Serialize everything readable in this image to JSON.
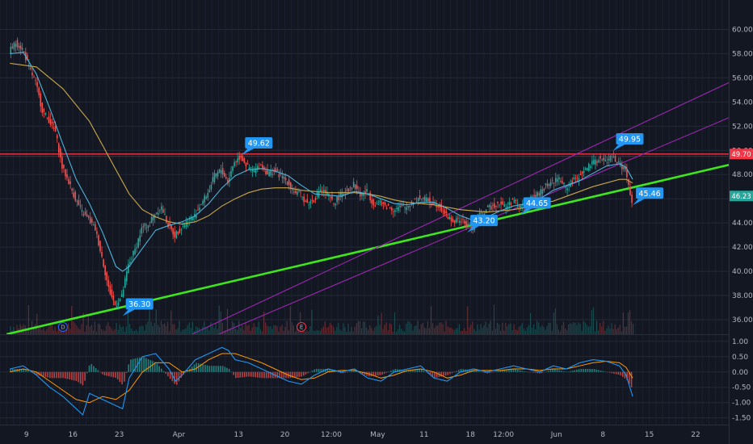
{
  "chart_data": [
    {
      "type": "candlestick-line",
      "price_axis": {
        "ticks": [
          "60.00",
          "58.00",
          "56.00",
          "54.00",
          "52.00",
          "50.00",
          "48.00",
          "46.00",
          "44.00",
          "42.00",
          "40.00",
          "38.00",
          "36.00"
        ],
        "range": [
          34.8,
          61.5
        ]
      },
      "time_axis": {
        "labels": [
          {
            "t": 2.5,
            "label": "9"
          },
          {
            "t": 9.5,
            "label": "16"
          },
          {
            "t": 16.5,
            "label": "23"
          },
          {
            "t": 25.5,
            "label": "Apr"
          },
          {
            "t": 34.5,
            "label": "13"
          },
          {
            "t": 41.5,
            "label": "20"
          },
          {
            "t": 48.5,
            "label": "12:00"
          },
          {
            "t": 55.5,
            "label": "May"
          },
          {
            "t": 62.5,
            "label": "11"
          },
          {
            "t": 69.5,
            "label": "18"
          },
          {
            "t": 74.5,
            "label": "12:00"
          },
          {
            "t": 82.5,
            "label": "Jun"
          },
          {
            "t": 89.5,
            "label": "8"
          },
          {
            "t": 96.5,
            "label": "15"
          },
          {
            "t": 103.5,
            "label": "22"
          }
        ],
        "range": [
          -1.5,
          108.5
        ]
      },
      "price_series": [
        [
          0,
          58.2
        ],
        [
          1,
          58.9
        ],
        [
          2,
          58.4
        ],
        [
          3,
          56.9
        ],
        [
          4,
          55.6
        ],
        [
          5,
          53.3
        ],
        [
          6,
          52.5
        ],
        [
          7,
          51.5
        ],
        [
          8,
          48.6
        ],
        [
          9,
          47.4
        ],
        [
          10,
          46.0
        ],
        [
          11,
          44.9
        ],
        [
          12,
          44.3
        ],
        [
          13,
          43.5
        ],
        [
          14,
          41.2
        ],
        [
          15,
          38.6
        ],
        [
          16,
          37.2
        ],
        [
          17,
          37.9
        ],
        [
          18,
          40.5
        ],
        [
          19,
          41.8
        ],
        [
          20,
          43.5
        ],
        [
          21,
          43.9
        ],
        [
          22,
          44.8
        ],
        [
          23,
          45.3
        ],
        [
          24,
          43.8
        ],
        [
          25,
          43.0
        ],
        [
          26,
          43.6
        ],
        [
          27,
          44.2
        ],
        [
          28,
          44.6
        ],
        [
          29,
          45.6
        ],
        [
          30,
          46.5
        ],
        [
          31,
          47.9
        ],
        [
          32,
          48.4
        ],
        [
          33,
          47.4
        ],
        [
          34,
          49.1
        ],
        [
          35,
          49.5
        ],
        [
          36,
          48.6
        ],
        [
          37,
          48.3
        ],
        [
          38,
          48.8
        ],
        [
          39,
          48.1
        ],
        [
          40,
          48.3
        ],
        [
          41,
          47.9
        ],
        [
          42,
          47.4
        ],
        [
          43,
          46.6
        ],
        [
          44,
          46.3
        ],
        [
          45,
          45.6
        ],
        [
          46,
          45.9
        ],
        [
          47,
          46.8
        ],
        [
          48,
          46.4
        ],
        [
          49,
          45.6
        ],
        [
          50,
          46.3
        ],
        [
          51,
          46.7
        ],
        [
          52,
          47.2
        ],
        [
          53,
          46.3
        ],
        [
          54,
          46.6
        ],
        [
          55,
          45.6
        ],
        [
          56,
          45.6
        ],
        [
          57,
          45.4
        ],
        [
          58,
          45.1
        ],
        [
          59,
          45.3
        ],
        [
          60,
          45.3
        ],
        [
          61,
          45.8
        ],
        [
          62,
          46.1
        ],
        [
          63,
          45.9
        ],
        [
          64,
          45.7
        ],
        [
          65,
          45.4
        ],
        [
          66,
          44.6
        ],
        [
          67,
          44.1
        ],
        [
          68,
          44.3
        ],
        [
          69,
          43.8
        ],
        [
          70,
          43.6
        ],
        [
          71,
          44.6
        ],
        [
          72,
          45.1
        ],
        [
          73,
          45.4
        ],
        [
          74,
          45.7
        ],
        [
          75,
          45.3
        ],
        [
          76,
          45.9
        ],
        [
          77,
          45.4
        ],
        [
          78,
          45.5
        ],
        [
          79,
          46.1
        ],
        [
          80,
          46.4
        ],
        [
          81,
          47.1
        ],
        [
          82,
          47.4
        ],
        [
          83,
          47.7
        ],
        [
          84,
          46.9
        ],
        [
          85,
          47.4
        ],
        [
          86,
          47.9
        ],
        [
          87,
          48.4
        ],
        [
          88,
          48.9
        ],
        [
          89,
          49.3
        ],
        [
          90,
          49.1
        ],
        [
          91,
          49.5
        ],
        [
          92,
          48.9
        ],
        [
          93,
          48.4
        ],
        [
          94,
          45.6
        ]
      ],
      "ema_fast": [
        [
          0,
          58.0
        ],
        [
          2,
          58.1
        ],
        [
          4,
          56.3
        ],
        [
          6,
          53.5
        ],
        [
          8,
          50.5
        ],
        [
          10,
          47.6
        ],
        [
          12,
          45.6
        ],
        [
          14,
          43.2
        ],
        [
          16,
          40.4
        ],
        [
          17,
          40.0
        ],
        [
          18,
          40.4
        ],
        [
          20,
          41.9
        ],
        [
          22,
          43.4
        ],
        [
          24,
          43.8
        ],
        [
          26,
          44.1
        ],
        [
          28,
          44.6
        ],
        [
          30,
          45.6
        ],
        [
          32,
          46.9
        ],
        [
          34,
          47.9
        ],
        [
          36,
          48.4
        ],
        [
          38,
          48.5
        ],
        [
          40,
          48.3
        ],
        [
          42,
          47.9
        ],
        [
          44,
          47.1
        ],
        [
          46,
          46.4
        ],
        [
          48,
          46.3
        ],
        [
          50,
          46.2
        ],
        [
          52,
          46.6
        ],
        [
          54,
          46.4
        ],
        [
          56,
          46.0
        ],
        [
          58,
          45.6
        ],
        [
          60,
          45.5
        ],
        [
          62,
          45.7
        ],
        [
          64,
          45.7
        ],
        [
          66,
          45.2
        ],
        [
          68,
          44.6
        ],
        [
          70,
          44.2
        ],
        [
          72,
          44.5
        ],
        [
          74,
          45.0
        ],
        [
          76,
          45.4
        ],
        [
          78,
          45.6
        ],
        [
          80,
          46.0
        ],
        [
          82,
          46.7
        ],
        [
          84,
          47.1
        ],
        [
          86,
          47.5
        ],
        [
          88,
          48.1
        ],
        [
          90,
          48.7
        ],
        [
          92,
          48.9
        ],
        [
          93,
          48.6
        ],
        [
          94,
          47.6
        ]
      ],
      "ema_slow": [
        [
          0,
          57.2
        ],
        [
          4,
          56.9
        ],
        [
          8,
          55.1
        ],
        [
          12,
          52.4
        ],
        [
          16,
          48.4
        ],
        [
          18,
          46.4
        ],
        [
          20,
          45.1
        ],
        [
          22,
          44.5
        ],
        [
          24,
          44.1
        ],
        [
          26,
          43.9
        ],
        [
          28,
          44.1
        ],
        [
          30,
          44.6
        ],
        [
          32,
          45.4
        ],
        [
          34,
          46.0
        ],
        [
          36,
          46.5
        ],
        [
          38,
          46.8
        ],
        [
          40,
          46.9
        ],
        [
          42,
          46.9
        ],
        [
          44,
          46.7
        ],
        [
          46,
          46.6
        ],
        [
          48,
          46.5
        ],
        [
          50,
          46.5
        ],
        [
          52,
          46.5
        ],
        [
          54,
          46.4
        ],
        [
          56,
          46.2
        ],
        [
          58,
          45.9
        ],
        [
          60,
          45.7
        ],
        [
          62,
          45.6
        ],
        [
          64,
          45.5
        ],
        [
          66,
          45.3
        ],
        [
          68,
          45.1
        ],
        [
          70,
          45.0
        ],
        [
          72,
          44.9
        ],
        [
          74,
          45.0
        ],
        [
          76,
          45.1
        ],
        [
          78,
          45.3
        ],
        [
          80,
          45.6
        ],
        [
          82,
          45.8
        ],
        [
          84,
          46.2
        ],
        [
          86,
          46.6
        ],
        [
          88,
          47.0
        ],
        [
          90,
          47.3
        ],
        [
          92,
          47.6
        ],
        [
          93,
          47.6
        ],
        [
          94,
          47.3
        ]
      ],
      "horizontal_lines": [
        {
          "price": 49.7,
          "color": "#f23645"
        }
      ],
      "trend_lines": [
        {
          "from": [
            -0.5,
            34.8
          ],
          "to": [
            108.5,
            48.8
          ],
          "color": "#3de61d"
        },
        {
          "from": [
            27.5,
            34.8
          ],
          "to": [
            108.5,
            55.6
          ],
          "color": "#9c27b0"
        },
        {
          "from": [
            31.5,
            34.8
          ],
          "to": [
            108.5,
            52.7
          ],
          "color": "#9c27b0"
        }
      ],
      "callouts": [
        {
          "t": 17,
          "price": 36.3,
          "label": "36.30"
        },
        {
          "t": 35,
          "price": 49.62,
          "label": "49.62"
        },
        {
          "t": 69,
          "price": 43.2,
          "label": "43.20"
        },
        {
          "t": 77,
          "price": 44.65,
          "label": "44.65"
        },
        {
          "t": 91,
          "price": 49.95,
          "label": "49.95"
        },
        {
          "t": 94,
          "price": 45.46,
          "label": "45.46"
        }
      ],
      "price_tags": [
        {
          "label": "49.70",
          "price": 49.7,
          "color": "#f23645"
        },
        {
          "label": "46.23",
          "price": 46.23,
          "color": "#26a69a"
        }
      ],
      "events": [
        {
          "t": 8,
          "label": "D",
          "color": "#2962ff"
        },
        {
          "t": 44,
          "label": "E",
          "color": "#f23645"
        }
      ],
      "colors": {
        "background": "#131722",
        "up": "#26a69a",
        "down": "#ef5350",
        "ema_fast": "#4fb3d9",
        "ema_slow": "#c8a64a",
        "callout": "#2196f3"
      }
    },
    {
      "type": "oscillator",
      "y_axis": {
        "ticks": [
          "1.00",
          "0.50",
          "0.00",
          "-0.50",
          "-1.00",
          "-1.50"
        ],
        "range": [
          -1.72,
          1.18
        ]
      },
      "line_1": [
        [
          0,
          0.1
        ],
        [
          2,
          0.2
        ],
        [
          4,
          -0.1
        ],
        [
          6,
          -0.5
        ],
        [
          8,
          -0.8
        ],
        [
          10,
          -1.2
        ],
        [
          11,
          -1.4
        ],
        [
          12,
          -0.7
        ],
        [
          14,
          -0.9
        ],
        [
          16,
          -1.1
        ],
        [
          17,
          -1.2
        ],
        [
          18,
          -0.2
        ],
        [
          20,
          0.5
        ],
        [
          22,
          0.6
        ],
        [
          24,
          0.1
        ],
        [
          25,
          -0.3
        ],
        [
          26,
          -0.1
        ],
        [
          28,
          0.4
        ],
        [
          30,
          0.6
        ],
        [
          32,
          0.8
        ],
        [
          33,
          0.7
        ],
        [
          34,
          0.4
        ],
        [
          36,
          0.3
        ],
        [
          38,
          0.1
        ],
        [
          40,
          -0.1
        ],
        [
          42,
          -0.3
        ],
        [
          44,
          -0.4
        ],
        [
          46,
          -0.1
        ],
        [
          48,
          0.1
        ],
        [
          50,
          0.0
        ],
        [
          52,
          0.1
        ],
        [
          54,
          -0.2
        ],
        [
          56,
          -0.3
        ],
        [
          58,
          0.0
        ],
        [
          60,
          0.1
        ],
        [
          62,
          0.2
        ],
        [
          64,
          -0.2
        ],
        [
          66,
          -0.3
        ],
        [
          68,
          0.0
        ],
        [
          70,
          0.1
        ],
        [
          72,
          0.0
        ],
        [
          74,
          0.1
        ],
        [
          76,
          0.2
        ],
        [
          78,
          0.1
        ],
        [
          80,
          0.0
        ],
        [
          82,
          0.2
        ],
        [
          84,
          0.1
        ],
        [
          86,
          0.3
        ],
        [
          88,
          0.4
        ],
        [
          90,
          0.35
        ],
        [
          92,
          0.2
        ],
        [
          93,
          -0.1
        ],
        [
          94,
          -0.8
        ]
      ],
      "line_2": [
        [
          0,
          0.0
        ],
        [
          2,
          0.1
        ],
        [
          4,
          0.0
        ],
        [
          6,
          -0.3
        ],
        [
          8,
          -0.6
        ],
        [
          10,
          -0.9
        ],
        [
          12,
          -1.0
        ],
        [
          14,
          -0.8
        ],
        [
          16,
          -0.9
        ],
        [
          18,
          -0.6
        ],
        [
          20,
          0.0
        ],
        [
          22,
          0.3
        ],
        [
          24,
          0.3
        ],
        [
          26,
          0.0
        ],
        [
          28,
          0.1
        ],
        [
          30,
          0.4
        ],
        [
          32,
          0.6
        ],
        [
          34,
          0.6
        ],
        [
          36,
          0.45
        ],
        [
          38,
          0.3
        ],
        [
          40,
          0.1
        ],
        [
          42,
          -0.1
        ],
        [
          44,
          -0.25
        ],
        [
          46,
          -0.2
        ],
        [
          48,
          0.0
        ],
        [
          50,
          0.05
        ],
        [
          52,
          0.05
        ],
        [
          54,
          -0.05
        ],
        [
          56,
          -0.2
        ],
        [
          58,
          -0.1
        ],
        [
          60,
          0.05
        ],
        [
          62,
          0.1
        ],
        [
          64,
          0.0
        ],
        [
          66,
          -0.2
        ],
        [
          68,
          -0.1
        ],
        [
          70,
          0.05
        ],
        [
          72,
          0.05
        ],
        [
          74,
          0.05
        ],
        [
          76,
          0.1
        ],
        [
          78,
          0.1
        ],
        [
          80,
          0.05
        ],
        [
          82,
          0.1
        ],
        [
          84,
          0.1
        ],
        [
          86,
          0.2
        ],
        [
          88,
          0.3
        ],
        [
          90,
          0.35
        ],
        [
          92,
          0.3
        ],
        [
          93,
          0.15
        ],
        [
          94,
          -0.2
        ]
      ],
      "colors": {
        "line_1": "#2196f3",
        "line_2": "#ff9800",
        "hist_up": "#26a69a",
        "hist_down": "#ef5350"
      }
    }
  ]
}
